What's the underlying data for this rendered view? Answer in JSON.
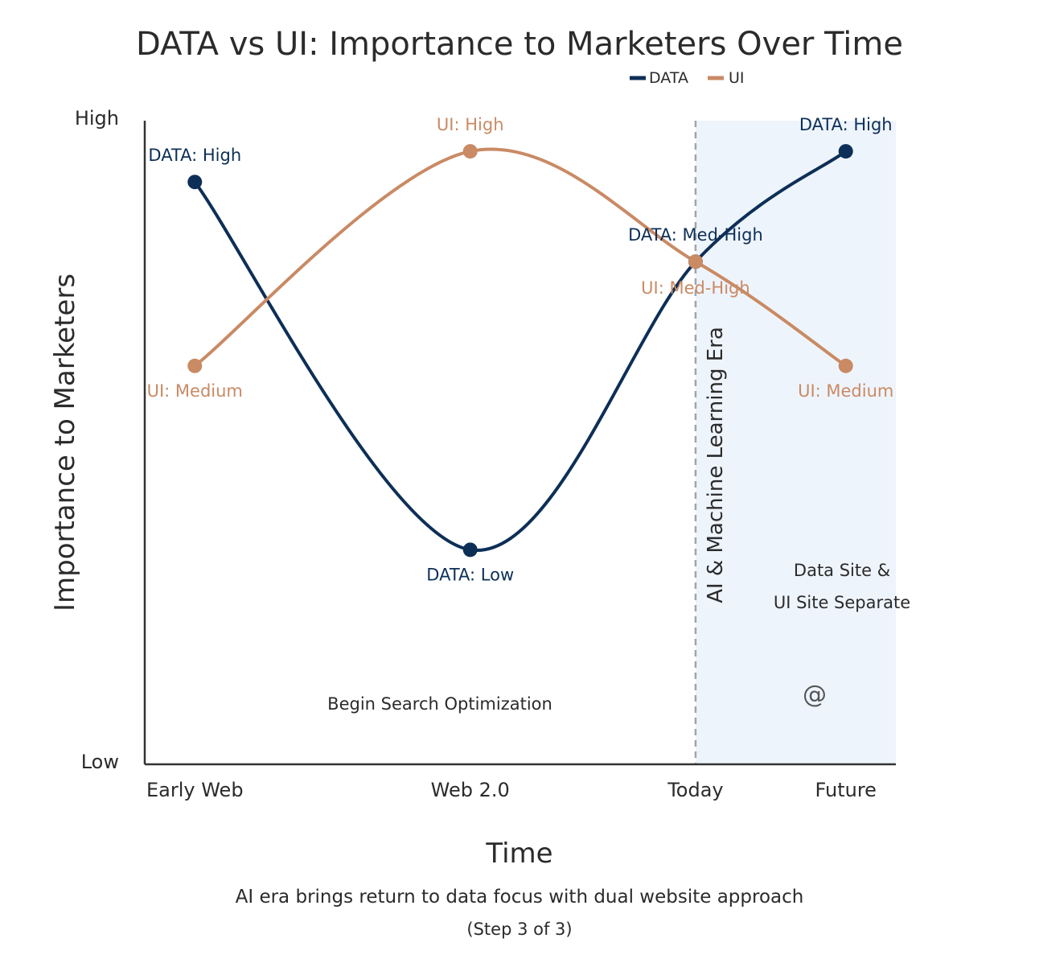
{
  "colors": {
    "data": "#0d2f57",
    "ui": "#c98a64",
    "text": "#2b2b2b",
    "era_shade": "#eef4fc",
    "era_line": "#a0a4ab"
  },
  "chart_data": {
    "type": "line",
    "title": "DATA vs UI: Importance to Marketers Over Time",
    "xlabel": "Time",
    "ylabel": "Importance to Marketers",
    "subtitle": "AI era brings return to data focus with dual website approach",
    "step": "(Step 3 of 3)",
    "categories": [
      "Early Web",
      "Web 2.0",
      "Today",
      "Future"
    ],
    "x": [
      0.5,
      3.25,
      5.5,
      7
    ],
    "xlim": [
      0,
      7.5
    ],
    "y_ticks": [
      "Low",
      "High"
    ],
    "ylim": [
      0,
      10.5
    ],
    "legend_position": "top-center",
    "series": [
      {
        "name": "DATA",
        "values": [
          9.5,
          3.5,
          8.2,
          10
        ],
        "labels": [
          "DATA: High",
          "DATA: Low",
          "DATA: Med-High",
          "DATA: High"
        ]
      },
      {
        "name": "UI",
        "values": [
          6.5,
          10,
          8.2,
          6.5
        ],
        "labels": [
          "UI: Medium",
          "UI: High",
          "UI: Med-High",
          "UI: Medium"
        ]
      }
    ],
    "annotations": {
      "era_label": "AI & Machine Learning Era",
      "search": "Begin Search Optimization",
      "separate_line1": "Data Site &",
      "separate_line2": "UI Site Separate",
      "watermark": "@"
    },
    "era_start": 5.5
  }
}
